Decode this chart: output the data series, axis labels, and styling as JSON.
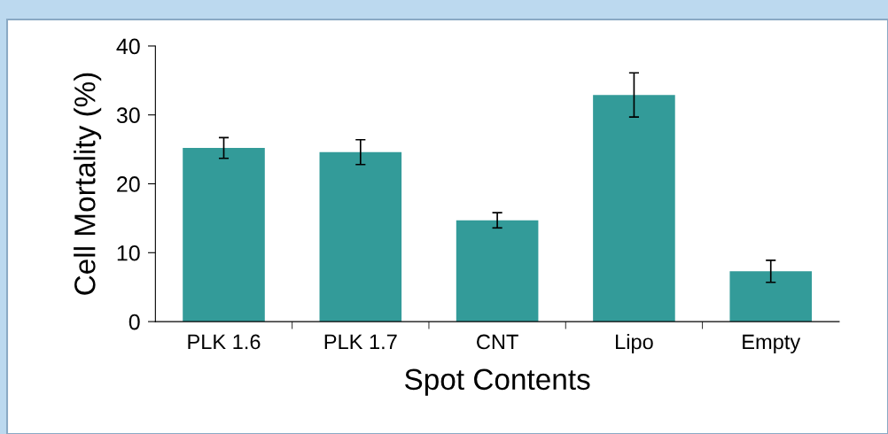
{
  "chart_data": {
    "type": "bar",
    "xlabel": "Spot Contents",
    "ylabel": "Cell Mortality (%)",
    "categories": [
      "PLK 1.6",
      "PLK 1.7",
      "CNT",
      "Lipo",
      "Empty"
    ],
    "values": [
      25.2,
      24.6,
      14.7,
      32.9,
      7.3
    ],
    "errors": [
      1.5,
      1.8,
      1.1,
      3.2,
      1.6
    ],
    "color": "#339b99",
    "ylim": [
      0,
      40
    ],
    "yticks": [
      0,
      10,
      20,
      30,
      40
    ],
    "grid": false,
    "legend": false
  }
}
